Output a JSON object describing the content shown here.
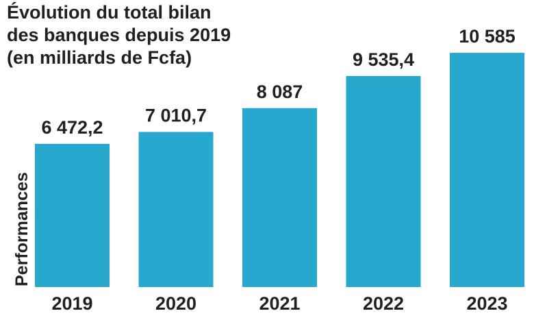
{
  "chart_data": {
    "type": "bar",
    "title_lines": [
      "Évolution du total bilan",
      "des banques depuis 2019",
      "(en milliards de Fcfa)"
    ],
    "side_label": "Performances",
    "categories": [
      "2019",
      "2020",
      "2021",
      "2022",
      "2023"
    ],
    "values": [
      6472.2,
      7010.7,
      8087,
      9535.4,
      10585
    ],
    "value_labels": [
      "6 472,2",
      "7 010,7",
      "8 087",
      "9 535,4",
      "10 585"
    ],
    "bar_color": "#27a8cf",
    "text_color": "#231f20",
    "grid": false,
    "legend": "none"
  }
}
